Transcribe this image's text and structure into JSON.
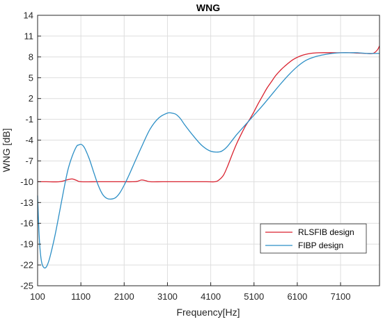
{
  "chart_data": {
    "type": "line",
    "title": "WNG",
    "xlabel": "Frequency[Hz]",
    "ylabel": "WNG [dB]",
    "xlim": [
      100,
      8000
    ],
    "ylim": [
      -25,
      14
    ],
    "xticks": [
      100,
      1100,
      2100,
      3100,
      4100,
      5100,
      6100,
      7100
    ],
    "yticks": [
      -25,
      -22,
      -19,
      -16,
      -13,
      -10,
      -7,
      -4,
      -1,
      2,
      5,
      8,
      11,
      14
    ],
    "grid": true,
    "legend_position": "bottom-right",
    "series": [
      {
        "name": "RLSFIB design",
        "color": "#d9222f",
        "x": [
          100,
          300,
          600,
          800,
          900,
          1000,
          1100,
          1500,
          2000,
          2300,
          2400,
          2500,
          2600,
          2700,
          3000,
          3500,
          4000,
          4200,
          4300,
          4400,
          4500,
          4600,
          4700,
          4800,
          4900,
          5000,
          5100,
          5200,
          5300,
          5400,
          5500,
          5600,
          5700,
          5800,
          6000,
          6200,
          6400,
          6600,
          7000,
          7300,
          7500,
          7700,
          7850,
          7950,
          8000
        ],
        "y": [
          -10,
          -10,
          -10,
          -9.7,
          -9.6,
          -9.8,
          -10,
          -10,
          -10,
          -10,
          -9.95,
          -9.75,
          -9.85,
          -10,
          -10,
          -10,
          -10,
          -10,
          -9.7,
          -9,
          -7.6,
          -6,
          -4.5,
          -3.2,
          -2,
          -1,
          0.1,
          1.3,
          2.4,
          3.5,
          4.4,
          5.3,
          6,
          6.6,
          7.6,
          8.2,
          8.5,
          8.6,
          8.6,
          8.6,
          8.55,
          8.5,
          8.5,
          9,
          9.6
        ]
      },
      {
        "name": "FIBP design",
        "color": "#2c8fc6",
        "x": [
          100,
          130,
          160,
          200,
          250,
          300,
          350,
          400,
          500,
          600,
          700,
          800,
          900,
          1000,
          1050,
          1100,
          1150,
          1200,
          1300,
          1400,
          1500,
          1600,
          1700,
          1800,
          1900,
          2000,
          2100,
          2200,
          2300,
          2500,
          2700,
          2900,
          3100,
          3200,
          3300,
          3400,
          3500,
          3700,
          3900,
          4100,
          4300,
          4400,
          4500,
          4600,
          4700,
          4800,
          4900,
          5000,
          5100,
          5300,
          5500,
          5700,
          5900,
          6100,
          6300,
          6500,
          6700,
          6900,
          7100,
          7300,
          7500,
          7700,
          7850,
          8000
        ],
        "y": [
          -12,
          -17,
          -20,
          -21.8,
          -22.4,
          -22.3,
          -21.6,
          -20.5,
          -17.8,
          -14.6,
          -11.3,
          -8.3,
          -6.3,
          -4.9,
          -4.7,
          -4.6,
          -4.8,
          -5.3,
          -6.8,
          -8.7,
          -10.5,
          -11.8,
          -12.4,
          -12.5,
          -12.3,
          -11.6,
          -10.5,
          -9.2,
          -7.8,
          -5,
          -2.4,
          -0.8,
          -0.1,
          -0.1,
          -0.3,
          -0.9,
          -1.8,
          -3.4,
          -4.8,
          -5.6,
          -5.7,
          -5.4,
          -4.8,
          -4,
          -3.2,
          -2.5,
          -1.8,
          -1.1,
          -0.4,
          1,
          2.5,
          4,
          5.4,
          6.6,
          7.5,
          8,
          8.3,
          8.5,
          8.6,
          8.6,
          8.6,
          8.5,
          8.5,
          8.5
        ]
      }
    ]
  }
}
